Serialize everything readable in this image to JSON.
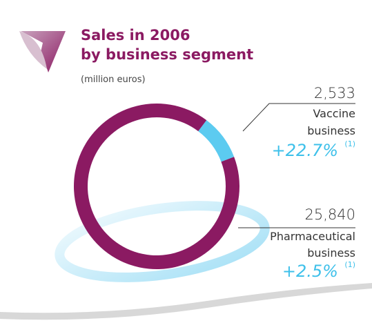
{
  "chart_data": {
    "type": "donut",
    "title": [
      "Sales in 2006",
      "by business segment"
    ],
    "subtitle": "(million euros)",
    "categories": [
      [
        "Vaccine",
        "business"
      ],
      [
        "Pharmaceutical",
        "business"
      ]
    ],
    "values": [
      2533,
      25840
    ],
    "value_labels": [
      "2,533",
      "25,840"
    ],
    "colors": [
      "#5ccbf0",
      "#8b1a62"
    ],
    "growth": [
      "+22.7%",
      "+2.5%"
    ],
    "growth_notes": [
      "(1)",
      "(1)"
    ]
  }
}
